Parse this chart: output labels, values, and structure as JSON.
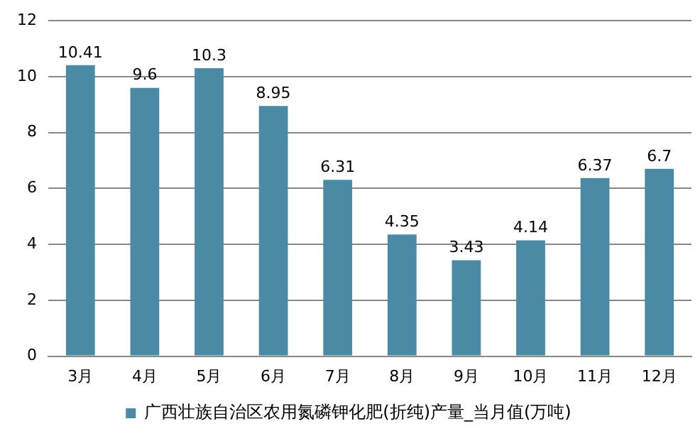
{
  "chart_data": {
    "type": "bar",
    "categories": [
      "3月",
      "4月",
      "5月",
      "6月",
      "7月",
      "8月",
      "9月",
      "10月",
      "11月",
      "12月"
    ],
    "series": [
      {
        "name": "广西壮族自治区农用氮磷钾化肥(折纯)产量_当月值(万吨)",
        "color": "#4a8aa5",
        "values": [
          10.41,
          9.6,
          10.3,
          8.95,
          6.31,
          4.35,
          3.43,
          4.14,
          6.37,
          6.7
        ]
      }
    ],
    "ylim": [
      0,
      12
    ],
    "yticks": [
      0,
      2,
      4,
      6,
      8,
      10,
      12
    ],
    "grid": "y",
    "legend": "bottom",
    "data_labels": true
  }
}
